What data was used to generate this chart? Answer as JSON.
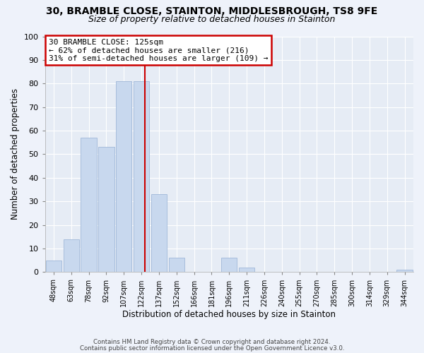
{
  "title1": "30, BRAMBLE CLOSE, STAINTON, MIDDLESBROUGH, TS8 9FE",
  "title2": "Size of property relative to detached houses in Stainton",
  "xlabel": "Distribution of detached houses by size in Stainton",
  "ylabel": "Number of detached properties",
  "categories": [
    "48sqm",
    "63sqm",
    "78sqm",
    "92sqm",
    "107sqm",
    "122sqm",
    "137sqm",
    "152sqm",
    "166sqm",
    "181sqm",
    "196sqm",
    "211sqm",
    "226sqm",
    "240sqm",
    "255sqm",
    "270sqm",
    "285sqm",
    "300sqm",
    "314sqm",
    "329sqm",
    "344sqm"
  ],
  "values": [
    5,
    14,
    57,
    53,
    81,
    81,
    33,
    6,
    0,
    0,
    6,
    2,
    0,
    0,
    0,
    0,
    0,
    0,
    0,
    0,
    1
  ],
  "bar_color": "#c8d8ee",
  "bar_edge_color": "#a0b8d8",
  "property_line_color": "#cc0000",
  "annotation_title": "30 BRAMBLE CLOSE: 125sqm",
  "annotation_line1": "← 62% of detached houses are smaller (216)",
  "annotation_line2": "31% of semi-detached houses are larger (109) →",
  "annotation_box_color": "#ffffff",
  "annotation_box_edge": "#cc0000",
  "ylim": [
    0,
    100
  ],
  "yticks": [
    0,
    10,
    20,
    30,
    40,
    50,
    60,
    70,
    80,
    90,
    100
  ],
  "footnote1": "Contains HM Land Registry data © Crown copyright and database right 2024.",
  "footnote2": "Contains public sector information licensed under the Open Government Licence v3.0.",
  "background_color": "#eef2fa",
  "plot_background": "#e6ecf5",
  "grid_color": "#ffffff",
  "title1_fontsize": 10,
  "title2_fontsize": 9
}
